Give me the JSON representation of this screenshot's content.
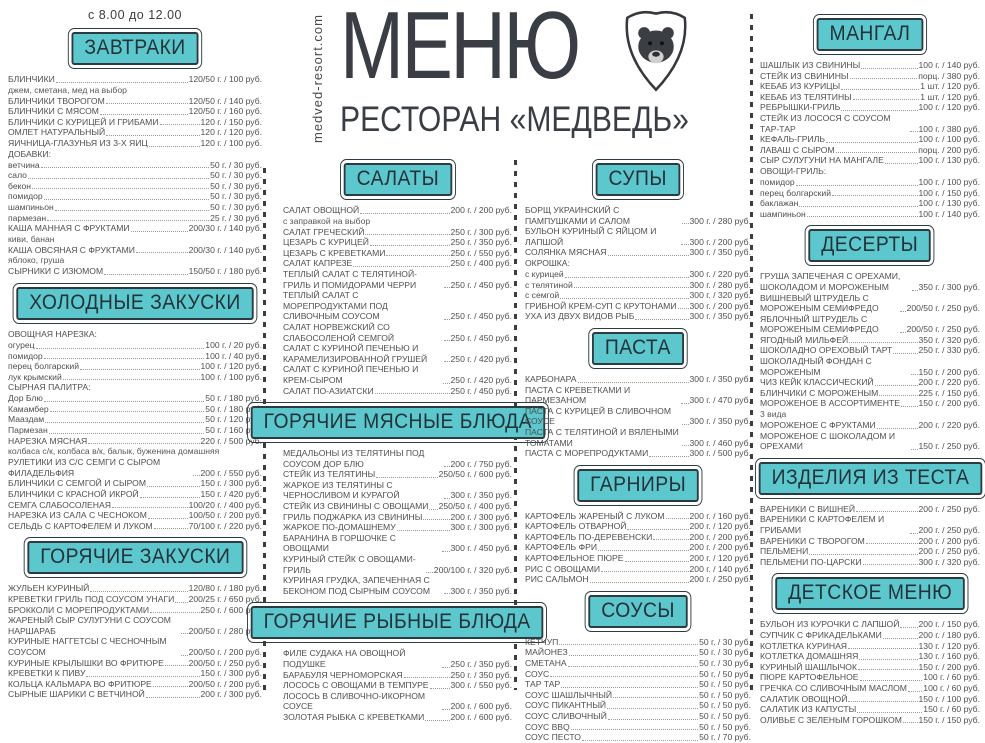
{
  "header": {
    "title": "МЕНЮ",
    "subtitle": "РЕСТОРАН «МЕДВЕДЬ»",
    "website": "medved-resort.com",
    "logo": "bear-shield-icon"
  },
  "colors": {
    "accent_teal": "#5cc7cd",
    "badge_border": "#2c3a41",
    "body_text": "#4f4f4f"
  },
  "breakfast_hours": "с 8.00 до 12.00",
  "columns": {
    "col1": [
      "breakfast",
      "cold_appetizers",
      "hot_appetizers"
    ],
    "col2": [
      "salads",
      "hot_meat",
      "hot_fish"
    ],
    "col3": [
      "soups",
      "pasta",
      "sides",
      "sauces"
    ],
    "col4": [
      "mangal",
      "desserts",
      "dough",
      "kids"
    ]
  },
  "sections": {
    "breakfast": {
      "title": "ЗАВТРАКИ",
      "items": [
        {
          "name": "БЛИНЧИКИ",
          "portion": "120/50 г.",
          "price": "100 руб.",
          "note": "джем, сметана, мед на выбор"
        },
        {
          "name": "БЛИНЧИКИ ТВОРОГОМ",
          "portion": "120/50 г.",
          "price": "140 руб."
        },
        {
          "name": "БЛИНЧИКИ С МЯСОМ",
          "portion": "120/50 г.",
          "price": "160 руб."
        },
        {
          "name": "БЛИНЧИКИ С КУРИЦЕЙ И ГРИБАМИ",
          "portion": "120 г.",
          "price": "150 руб."
        },
        {
          "name": "ОМЛЕТ НАТУРАЛЬНЫЙ",
          "portion": "120 г.",
          "price": "120 руб."
        },
        {
          "name": "ЯИЧНИЦА-ГЛАЗУНЬЯ ИЗ 3-Х ЯИЦ",
          "portion": "120 г.",
          "price": "100 руб."
        },
        {
          "name": "ДОБАВКИ:",
          "subheader": true
        },
        {
          "name": "ветчина",
          "portion": "50 г.",
          "price": "30 руб."
        },
        {
          "name": "сало",
          "portion": "50 г.",
          "price": "30 руб."
        },
        {
          "name": "бекон",
          "portion": "50 г.",
          "price": "30 руб."
        },
        {
          "name": "помидор",
          "portion": "50 г.",
          "price": "30 руб."
        },
        {
          "name": "шампиньон",
          "portion": "50 г.",
          "price": "30 руб."
        },
        {
          "name": "пармезан",
          "portion": "25 г.",
          "price": "30 руб."
        },
        {
          "name": "КАША МАННАЯ С ФРУКТАМИ",
          "portion": "200/30 г.",
          "price": "140 руб.",
          "note": "киви, банан"
        },
        {
          "name": "КАША ОВСЯНАЯ С ФРУКТАМИ",
          "portion": "200/30 г.",
          "price": "140 руб.",
          "note": "яблоко, груша"
        },
        {
          "name": "СЫРНИКИ С ИЗЮМОМ",
          "portion": "150/50 г.",
          "price": "180 руб."
        }
      ]
    },
    "cold_appetizers": {
      "title": "ХОЛОДНЫЕ ЗАКУСКИ",
      "items": [
        {
          "name": "ОВОЩНАЯ НАРЕЗКА:",
          "subheader": true
        },
        {
          "name": "огурец",
          "portion": "100 г.",
          "price": "20 руб."
        },
        {
          "name": "помидор",
          "portion": "100 г.",
          "price": "40 руб."
        },
        {
          "name": "перец болгарский",
          "portion": "100 г.",
          "price": "120 руб."
        },
        {
          "name": "лук крымский",
          "portion": "100 г.",
          "price": "100 руб."
        },
        {
          "name": "СЫРНАЯ ПАЛИТРА:",
          "subheader": true
        },
        {
          "name": "Дор Блю",
          "portion": "50 г.",
          "price": "180 руб."
        },
        {
          "name": "Камамбер",
          "portion": "50 г.",
          "price": "180 руб."
        },
        {
          "name": "Мааздам",
          "portion": "50 г.",
          "price": "120 руб."
        },
        {
          "name": "Пармезан",
          "portion": "50 г.",
          "price": "160 руб."
        },
        {
          "name": "НАРЕЗКА МЯСНАЯ",
          "portion": "220 г.",
          "price": "500 руб.",
          "note": "колбаса с/к, колбаса в/к, балык, буженина домашняя"
        },
        {
          "name": "РУЛЕТИКИ ИЗ С/С СЕМГИ С СЫРОМ ФИЛАДЕЛЬФИЯ",
          "portion": "200 г.",
          "price": "550 руб."
        },
        {
          "name": "БЛИНЧИКИ С СЕМГОЙ И СЫРОМ",
          "portion": "150 г.",
          "price": "300 руб."
        },
        {
          "name": "БЛИНЧИКИ С КРАСНОЙ ИКРОЙ",
          "portion": "150 г.",
          "price": "420 руб."
        },
        {
          "name": "СЕМГА СЛАБОСОЛЕНАЯ",
          "portion": "100/20 г.",
          "price": "400 руб."
        },
        {
          "name": "НАРЕЗКА ИЗ САЛА С ЧЕСНОКОМ",
          "portion": "100/50 г.",
          "price": "200 руб."
        },
        {
          "name": "СЕЛЬДЬ С КАРТОФЕЛЕМ И ЛУКОМ",
          "portion": "70/100 г.",
          "price": "220 руб."
        }
      ]
    },
    "hot_appetizers": {
      "title": "ГОРЯЧИЕ ЗАКУСКИ",
      "items": [
        {
          "name": "ЖУЛЬЕН КУРИНЫЙ",
          "portion": "120/80 г.",
          "price": "180 руб."
        },
        {
          "name": "КРЕВЕТКИ ГРИЛЬ ПОД СОУСОМ УНАГИ",
          "portion": "200/25 г.",
          "price": "650 руб."
        },
        {
          "name": "БРОККОЛИ С МОРЕПРОДУКТАМИ",
          "portion": "250 г.",
          "price": "600 руб."
        },
        {
          "name": "ЖАРЕНЫЙ СЫР СУЛУГУНИ С СОУСОМ НАРШАРАБ",
          "portion": "200/50 г.",
          "price": "280 руб."
        },
        {
          "name": "КУРИНЫЕ НАГГЕТСЫ С ЧЕСНОЧНЫМ СОУСОМ",
          "portion": "200/50 г.",
          "price": "200 руб."
        },
        {
          "name": "КУРИНЫЕ КРЫЛЫШКИ ВО ФРИТЮРЕ",
          "portion": "200/50 г.",
          "price": "250 руб."
        },
        {
          "name": "КРЕВЕТКИ К ПИВУ",
          "portion": "150 г.",
          "price": "300 руб."
        },
        {
          "name": "КОЛЬЦА КАЛЬМАРА ВО ФРИТЮРЕ",
          "portion": "200/50 г.",
          "price": "200 руб."
        },
        {
          "name": "СЫРНЫЕ ШАРИКИ С ВЕТЧИНОЙ",
          "portion": "200 г.",
          "price": "300 руб."
        }
      ]
    },
    "salads": {
      "title": "САЛАТЫ",
      "items": [
        {
          "name": "САЛАТ ОВОЩНОЙ",
          "portion": "200 г.",
          "price": "200 руб.",
          "note": "с заправкой на выбор"
        },
        {
          "name": "САЛАТ ГРЕЧЕСКИЙ",
          "portion": "250 г.",
          "price": "300 руб."
        },
        {
          "name": "ЦЕЗАРЬ С КУРИЦЕЙ",
          "portion": "250 г.",
          "price": "350 руб."
        },
        {
          "name": "ЦЕЗАРЬ С КРЕВЕТКАМИ",
          "portion": "250 г.",
          "price": "550 руб."
        },
        {
          "name": "САЛАТ КАПРЕЗЕ",
          "portion": "250 г.",
          "price": "400 руб."
        },
        {
          "name": "ТЕПЛЫЙ САЛАТ С ТЕЛЯТИНОЙ-ГРИЛЬ И ПОМИДОРАМИ ЧЕРРИ",
          "portion": "250 г.",
          "price": "450 руб."
        },
        {
          "name": "ТЕПЛЫЙ САЛАТ С МОРЕПРОДУКТАМИ ПОД СЛИВОЧНЫМ СОУСОМ",
          "portion": "250 г.",
          "price": "450 руб."
        },
        {
          "name": "САЛАТ НОРВЕЖСКИЙ СО СЛАБОСОЛЕНОЙ СЕМГОЙ",
          "portion": "250 г.",
          "price": "450 руб."
        },
        {
          "name": "САЛАТ С КУРИНОЙ ПЕЧЕНЬЮ И КАРАМЕЛИЗИРОВАННОЙ ГРУШЕЙ",
          "portion": "250 г.",
          "price": "420 руб."
        },
        {
          "name": "САЛАТ С КУРИНОЙ ПЕЧЕНЬЮ И КРЕМ-СЫРОМ",
          "portion": "250 г.",
          "price": "420 руб."
        },
        {
          "name": "САЛАТ ПО-АЗИАТСКИ",
          "portion": "250 г.",
          "price": "450 руб."
        }
      ]
    },
    "hot_meat": {
      "title": "ГОРЯЧИЕ МЯСНЫЕ БЛЮДА",
      "items": [
        {
          "name": "МЕДАЛЬОНЫ ИЗ ТЕЛЯТИНЫ ПОД СОУСОМ ДОР БЛЮ",
          "portion": "200 г.",
          "price": "750 руб."
        },
        {
          "name": "СТЕЙК ИЗ ТЕЛЯТИНЫ",
          "portion": "250/50 г.",
          "price": "600 руб."
        },
        {
          "name": "ЖАРКОЕ ИЗ ТЕЛЯТИНЫ С ЧЕРНОСЛИВОМ И КУРАГОЙ",
          "portion": "300 г.",
          "price": "350 руб."
        },
        {
          "name": "СТЕЙК ИЗ СВИНИНЫ С ОВОЩАМИ",
          "portion": "250/50 г.",
          "price": "400 руб."
        },
        {
          "name": "ГРИЛЬ ПОДЖАРКА ИЗ СВИНИНЫ",
          "portion": "200 г.",
          "price": "300 руб."
        },
        {
          "name": "ЖАРКОЕ ПО-ДОМАШНЕМУ",
          "portion": "300 г.",
          "price": "300 руб."
        },
        {
          "name": "БАРАНИНА В ГОРШОЧКЕ С ОВОЩАМИ",
          "portion": "300 г.",
          "price": "450 руб."
        },
        {
          "name": "КУРИНЫЙ СТЕЙК С ОВОЩАМИ-ГРИЛЬ",
          "portion": "200/100 г.",
          "price": "320 руб."
        },
        {
          "name": "КУРИНАЯ ГРУДКА, ЗАПЕЧЕННАЯ С БЕКОНОМ ПОД СЫРНЫМ СОУСОМ",
          "portion": "300 г.",
          "price": "350 руб."
        }
      ]
    },
    "hot_fish": {
      "title": "ГОРЯЧИЕ РЫБНЫЕ БЛЮДА",
      "items": [
        {
          "name": "ФИЛЕ СУДАКА НА ОВОЩНОЙ ПОДУШКЕ",
          "portion": "250 г.",
          "price": "350 руб."
        },
        {
          "name": "БАРАБУЛЯ ЧЕРНОМОРСКАЯ",
          "portion": "250 г.",
          "price": "350 руб."
        },
        {
          "name": "ЛОСОСЬ С ОВОЩАМИ В ТЕМПУРЕ",
          "portion": "300 г.",
          "price": "550 руб."
        },
        {
          "name": "ЛОСОСЬ В СЛИВОЧНО-ИКОРНОМ СОУСЕ",
          "portion": "200 г.",
          "price": "600 руб."
        },
        {
          "name": "ЗОЛОТАЯ РЫБКА С КРЕВЕТКАМИ",
          "portion": "200 г.",
          "price": "600 руб."
        }
      ]
    },
    "soups": {
      "title": "СУПЫ",
      "items": [
        {
          "name": "БОРЩ УКРАИНСКИЙ С ПАМПУШКАМИ И САЛОМ",
          "portion": "300 г.",
          "price": "280 руб."
        },
        {
          "name": "БУЛЬОН КУРИНЫЙ С ЯЙЦОМ И ЛАПШОЙ",
          "portion": "300 г.",
          "price": "200 руб."
        },
        {
          "name": "СОЛЯНКА МЯСНАЯ",
          "portion": "300 г.",
          "price": "350 руб."
        },
        {
          "name": "ОКРОШКА:",
          "subheader": true
        },
        {
          "name": "с курицей",
          "portion": "300 г.",
          "price": "220 руб."
        },
        {
          "name": "с телятиной",
          "portion": "300 г.",
          "price": "280 руб."
        },
        {
          "name": "с семгой",
          "portion": "300 г.",
          "price": "320 руб."
        },
        {
          "name": "ГРИБНОЙ КРЕМ-СУП С КРУТОНАМИ",
          "portion": "300 г.",
          "price": "200 руб."
        },
        {
          "name": "УХА ИЗ ДВУХ ВИДОВ РЫБ",
          "portion": "300 г.",
          "price": "350 руб."
        }
      ]
    },
    "pasta": {
      "title": "ПАСТА",
      "items": [
        {
          "name": "КАРБОНАРА",
          "portion": "300 г.",
          "price": "350 руб."
        },
        {
          "name": "ПАСТА С КРЕВЕТКАМИ И ПАРМЕЗАНОМ",
          "portion": "300 г.",
          "price": "470 руб."
        },
        {
          "name": "ПАСТА С КУРИЦЕЙ В СЛИВОЧНОМ СОУСЕ",
          "portion": "300 г.",
          "price": "350 руб."
        },
        {
          "name": "ПАСТА С ТЕЛЯТИНОЙ И ВЯЛЕНЫМИ ТОМАТАМИ",
          "portion": "300 г.",
          "price": "460 руб."
        },
        {
          "name": "ПАСТА С МОРЕПРОДУКТАМИ",
          "portion": "300 г.",
          "price": "500 руб."
        }
      ]
    },
    "sides": {
      "title": "ГАРНИРЫ",
      "items": [
        {
          "name": "КАРТОФЕЛЬ ЖАРЕНЫЙ С ЛУКОМ",
          "portion": "200 г.",
          "price": "160 руб."
        },
        {
          "name": "КАРТОФЕЛЬ ОТВАРНОЙ",
          "portion": "200 г.",
          "price": "120 руб."
        },
        {
          "name": "КАРТОФЕЛЬ ПО-ДЕРЕВЕНСКИ",
          "portion": "200 г.",
          "price": "200 руб."
        },
        {
          "name": "КАРТОФЕЛЬ ФРИ",
          "portion": "200 г.",
          "price": "200 руб."
        },
        {
          "name": "КАРТОФЕЛЬНОЕ ПЮРЕ",
          "portion": "200 г.",
          "price": "120 руб."
        },
        {
          "name": "РИС С ОВОЩАМИ",
          "portion": "200 г.",
          "price": "140 руб."
        },
        {
          "name": "РИС САЛЬМОН",
          "portion": "200 г.",
          "price": "250 руб."
        }
      ]
    },
    "sauces": {
      "title": "СОУСЫ",
      "items": [
        {
          "name": "КЕТЧУП",
          "portion": "50 г.",
          "price": "30 руб."
        },
        {
          "name": "МАЙОНЕЗ",
          "portion": "50 г.",
          "price": "30 руб."
        },
        {
          "name": "СМЕТАНА",
          "portion": "50 г.",
          "price": "30 руб."
        },
        {
          "name": "СОУС",
          "portion": "50 г.",
          "price": "50 руб."
        },
        {
          "name": "ТАР ТАР",
          "portion": "50 г.",
          "price": "50 руб."
        },
        {
          "name": "СОУС ШАШЛЫЧНЫЙ",
          "portion": "50 г.",
          "price": "50 руб."
        },
        {
          "name": "СОУС ПИКАНТНЫЙ",
          "portion": "50 г.",
          "price": "50 руб."
        },
        {
          "name": "СОУС СЛИВОЧНЫЙ",
          "portion": "50 г.",
          "price": "50 руб."
        },
        {
          "name": "СОУС BBQ",
          "portion": "50 г.",
          "price": "50 руб."
        },
        {
          "name": "СОУС ПЕСТО",
          "portion": "50 г.",
          "price": "70 руб."
        }
      ]
    },
    "mangal": {
      "title": "МАНГАЛ",
      "items": [
        {
          "name": "ШАШЛЫК ИЗ СВИНИНЫ",
          "portion": "100 г.",
          "price": "140 руб."
        },
        {
          "name": "СТЕЙК ИЗ СВИНИНЫ",
          "portion": "порц.",
          "price": "380 руб."
        },
        {
          "name": "КЕБАБ ИЗ КУРИЦЫ",
          "portion": "1 шт.",
          "price": "120 руб."
        },
        {
          "name": "КЕБАБ ИЗ ТЕЛЯТИНЫ",
          "portion": "1 шт.",
          "price": "120 руб."
        },
        {
          "name": "РЕБРЫШКИ-ГРИЛЬ",
          "portion": "100 г.",
          "price": "120 руб."
        },
        {
          "name": "СТЕЙК ИЗ ЛОСОСЯ С СОУСОМ ТАР-ТАР",
          "portion": "100 г.",
          "price": "380 руб."
        },
        {
          "name": "КЕФАЛЬ-ГРИЛЬ",
          "portion": "100 г.",
          "price": "100 руб."
        },
        {
          "name": "ЛАВАШ С СЫРОМ",
          "portion": "порц.",
          "price": "200 руб."
        },
        {
          "name": "СЫР СУЛУГУНИ НА МАНГАЛЕ",
          "portion": "100 г.",
          "price": "130 руб."
        },
        {
          "name": "ОВОЩИ-ГРИЛЬ:",
          "subheader": true
        },
        {
          "name": "помидор",
          "portion": "100 г.",
          "price": "100 руб."
        },
        {
          "name": "перец болгарский",
          "portion": "100 г.",
          "price": "150 руб."
        },
        {
          "name": "баклажан",
          "portion": "100 г.",
          "price": "130 руб."
        },
        {
          "name": "шампиньон",
          "portion": "100 г.",
          "price": "140 руб."
        }
      ]
    },
    "desserts": {
      "title": "ДЕСЕРТЫ",
      "items": [
        {
          "name": "ГРУША ЗАПЕЧЕНАЯ С ОРЕХАМИ, ШОКОЛАДОМ И МОРОЖЕНЫМ",
          "portion": "350 г.",
          "price": "300 руб."
        },
        {
          "name": "ВИШНЕВЫЙ ШТРУДЕЛЬ С МОРОЖЕНЫМ СЕМИФРЕДО",
          "portion": "200/50 г.",
          "price": "250 руб."
        },
        {
          "name": "ЯБЛОЧНЫЙ ШТРУДЕЛЬ С МОРОЖЕНЫМ СЕМИФРЕДО",
          "portion": "200/50 г.",
          "price": "250 руб."
        },
        {
          "name": "ЯГОДНЫЙ МИЛЬФЕЙ",
          "portion": "350 г.",
          "price": "320 руб."
        },
        {
          "name": "ШОКОЛАДНО ОРЕХОВЫЙ ТАРТ",
          "portion": "250 г.",
          "price": "330 руб."
        },
        {
          "name": "ШОКОЛАДНЫЙ ФОНДАН С МОРОЖЕНЫМ",
          "portion": "150 г.",
          "price": "200 руб."
        },
        {
          "name": "ЧИЗ КЕЙК КЛАССИЧЕСКИЙ",
          "portion": "200 г.",
          "price": "220 руб."
        },
        {
          "name": "БЛИНЧИКИ С МОРОЖЕНЫМ",
          "portion": "225 г.",
          "price": "150 руб."
        },
        {
          "name": "МОРОЖЕНОЕ В АССОРТИМЕНТЕ",
          "portion": "150 г.",
          "price": "200 руб.",
          "note": "3 вида"
        },
        {
          "name": "МОРОЖЕНОЕ С ФРУКТАМИ",
          "portion": "200 г.",
          "price": "220 руб."
        },
        {
          "name": "МОРОЖЕНОЕ С ШОКОЛАДОМ И ОРЕХАМИ",
          "portion": "150 г.",
          "price": "250 руб."
        }
      ]
    },
    "dough": {
      "title": "ИЗДЕЛИЯ ИЗ ТЕСТА",
      "items": [
        {
          "name": "ВАРЕНИКИ С ВИШНЕЙ",
          "portion": "200 г.",
          "price": "250 руб."
        },
        {
          "name": "ВАРЕНИКИ С КАРТОФЕЛЕМ И ГРИБАМИ",
          "portion": "200 г.",
          "price": "250 руб."
        },
        {
          "name": "ВАРЕНИКИ С ТВОРОГОМ",
          "portion": "200 г.",
          "price": "200 руб."
        },
        {
          "name": "ПЕЛЬМЕНИ",
          "portion": "200 г.",
          "price": "250 руб."
        },
        {
          "name": "ПЕЛЬМЕНИ ПО-ЦАРСКИ",
          "portion": "300 г.",
          "price": "320 руб."
        }
      ]
    },
    "kids": {
      "title": "ДЕТСКОЕ МЕНЮ",
      "items": [
        {
          "name": "БУЛЬОН ИЗ КУРОЧКИ С ЛАПШОЙ",
          "portion": "200 г.",
          "price": "150 руб."
        },
        {
          "name": "СУПЧИК С ФРИКАДЕЛЬКАМИ",
          "portion": "200 г.",
          "price": "180 руб."
        },
        {
          "name": "КОТЛЕТКА КУРИНАЯ",
          "portion": "130 г.",
          "price": "120 руб."
        },
        {
          "name": "КОТЛЕТКА ДОМАШНЯЯ",
          "portion": "130 г.",
          "price": "160 руб."
        },
        {
          "name": "КУРИНЫЙ ШАШЛЫЧОК",
          "portion": "150 г.",
          "price": "200 руб."
        },
        {
          "name": "ПЮРЕ КАРТОФЕЛЬНОЕ",
          "portion": "100 г.",
          "price": "60 руб."
        },
        {
          "name": "ГРЕЧКА СО СЛИВОЧНЫМ МАСЛОМ",
          "portion": "100 г.",
          "price": "60 руб."
        },
        {
          "name": "САЛАТИК ОВОЩНОЙ",
          "portion": "150 г.",
          "price": "100 руб."
        },
        {
          "name": "САЛАТИК ИЗ КАПУСТЫ",
          "portion": "150 г.",
          "price": "60 руб."
        },
        {
          "name": "ОЛИВЬЕ С ЗЕЛЕНЫМ ГОРОШКОМ",
          "portion": "150 г.",
          "price": "150 руб."
        }
      ]
    }
  }
}
